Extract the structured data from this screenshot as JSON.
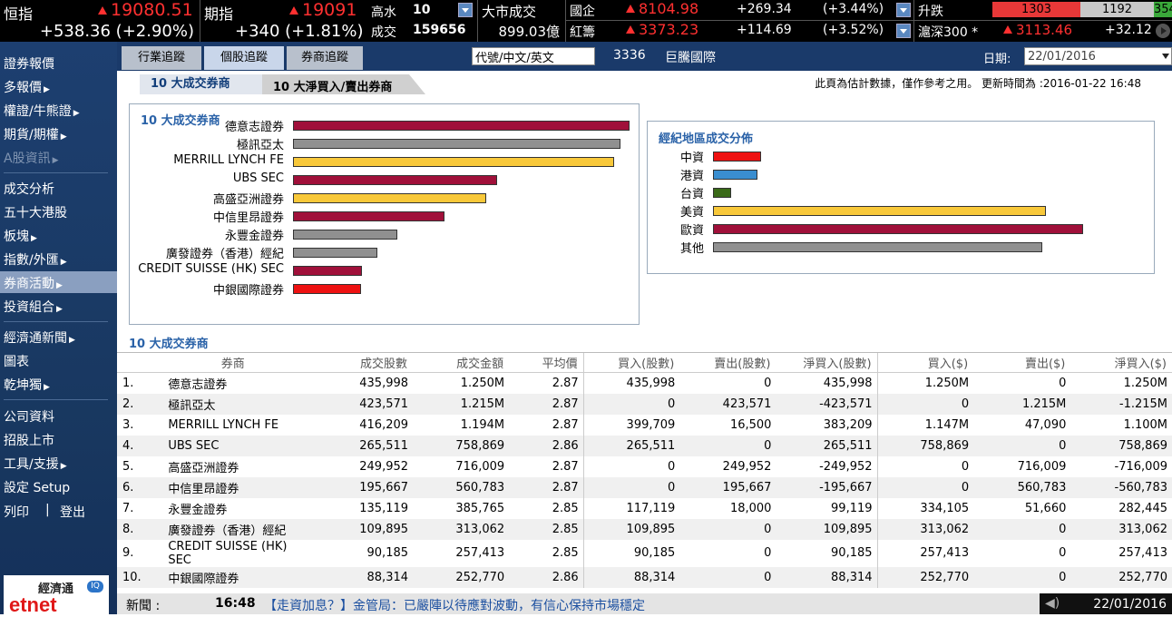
{
  "ticker": {
    "hsi": {
      "label": "恒指",
      "value": "19080.51",
      "change": "+538.36 (+2.90%)"
    },
    "futures": {
      "label": "期指",
      "value": "19091",
      "change": "+340 (+1.81%)",
      "high_label": "高水",
      "high_value": "10",
      "turnover_label": "成交",
      "turnover_value": "159656"
    },
    "market": {
      "label": "大市成交",
      "value": "899.03億"
    },
    "hscei": {
      "label": "國企",
      "value": "8104.98",
      "change": "+269.34",
      "pct": "(+3.44%)"
    },
    "redchip": {
      "label": "紅籌",
      "value": "3373.23",
      "change": "+114.69",
      "pct": "(+3.52%)"
    },
    "breadth": {
      "label": "升跌",
      "up": "1303",
      "unch": "1192",
      "down": "354"
    },
    "csi300": {
      "label": "滬深300 *",
      "value": "3113.46",
      "change": "+32.12"
    }
  },
  "sidebar": {
    "items": [
      "證券報價",
      "多報價",
      "權證/牛熊證",
      "期貨/期權",
      "A股資訊",
      "成交分析",
      "五十大港股",
      "板塊",
      "指數/外匯",
      "券商活動",
      "投資組合",
      "經濟通新聞",
      "圖表",
      "乾坤獨",
      "公司資料",
      "招股上市",
      "工具/支援",
      "設定 Setup",
      "列印",
      "登出"
    ],
    "active": "券商活動"
  },
  "logo": {
    "name": "etnet",
    "chinese": "經濟通",
    "badge": "IQ"
  },
  "tabs": {
    "industry": "行業追蹤",
    "stock": "個股追蹤",
    "broker": "券商追蹤"
  },
  "search": {
    "placeholder": "代號/中文/英文",
    "value": "代號/中文/英文"
  },
  "stock": {
    "code": "3336",
    "name": "巨騰國際"
  },
  "date": {
    "label": "日期:",
    "value": "22/01/2016"
  },
  "subtabs": {
    "top10": "10 大成交券商",
    "top10_net": "10 大淨買入/賣出券商"
  },
  "notice": "此頁為估計數據，僅作參考之用。 更新時間為 :2016-01-22 16:48",
  "chart_left": {
    "title": "10 大成交券商",
    "colors": {
      "red": "#a0103a",
      "gray": "#909090",
      "yellow": "#f8c83a",
      "bright": "#ee1111"
    }
  },
  "chart_right": {
    "title": "經紀地區成交分佈"
  },
  "chart_data": [
    {
      "type": "bar",
      "title": "10 大成交券商",
      "categories": [
        "德意志證券",
        "極訊亞太",
        "MERRILL LYNCH FE",
        "UBS SEC",
        "高盛亞洲證券",
        "中信里昂證券",
        "永豐金證券",
        "廣發證券（香港）經紀",
        "CREDIT SUISSE (HK) SEC",
        "中銀國際證券"
      ],
      "values": [
        1.25,
        1.215,
        1.194,
        0.759,
        0.716,
        0.561,
        0.386,
        0.313,
        0.257,
        0.253
      ]
    },
    {
      "type": "bar",
      "title": "經紀地區成交分佈",
      "categories": [
        "中資",
        "港資",
        "台資",
        "美資",
        "歐資",
        "其他"
      ],
      "values": [
        0.13,
        0.12,
        0.05,
        0.9,
        1.0,
        0.89
      ]
    }
  ],
  "table": {
    "title": "10 大成交券商",
    "headers": [
      "券商",
      "成交股數",
      "成交金額",
      "平均價",
      "買入(股數)",
      "賣出(股數)",
      "淨買入(股數)",
      "買入($)",
      "賣出($)",
      "淨買入($)"
    ],
    "rows": [
      [
        "1.",
        "德意志證券",
        "435,998",
        "1.250M",
        "2.87",
        "435,998",
        "0",
        "435,998",
        "1.250M",
        "0",
        "1.250M"
      ],
      [
        "2.",
        "極訊亞太",
        "423,571",
        "1.215M",
        "2.87",
        "0",
        "423,571",
        "-423,571",
        "0",
        "1.215M",
        "-1.215M"
      ],
      [
        "3.",
        "MERRILL LYNCH FE",
        "416,209",
        "1.194M",
        "2.87",
        "399,709",
        "16,500",
        "383,209",
        "1.147M",
        "47,090",
        "1.100M"
      ],
      [
        "4.",
        "UBS SEC",
        "265,511",
        "758,869",
        "2.86",
        "265,511",
        "0",
        "265,511",
        "758,869",
        "0",
        "758,869"
      ],
      [
        "5.",
        "高盛亞洲證券",
        "249,952",
        "716,009",
        "2.87",
        "0",
        "249,952",
        "-249,952",
        "0",
        "716,009",
        "-716,009"
      ],
      [
        "6.",
        "中信里昂證券",
        "195,667",
        "560,783",
        "2.87",
        "0",
        "195,667",
        "-195,667",
        "0",
        "560,783",
        "-560,783"
      ],
      [
        "7.",
        "永豐金證券",
        "135,119",
        "385,765",
        "2.85",
        "117,119",
        "18,000",
        "99,119",
        "334,105",
        "51,660",
        "282,445"
      ],
      [
        "8.",
        "廣發證券（香港）經紀",
        "109,895",
        "313,062",
        "2.85",
        "109,895",
        "0",
        "109,895",
        "313,062",
        "0",
        "313,062"
      ],
      [
        "9.",
        "CREDIT SUISSE (HK) SEC",
        "90,185",
        "257,413",
        "2.85",
        "90,185",
        "0",
        "90,185",
        "257,413",
        "0",
        "257,413"
      ],
      [
        "10.",
        "中銀國際證券",
        "88,314",
        "252,770",
        "2.86",
        "88,314",
        "0",
        "88,314",
        "252,770",
        "0",
        "252,770"
      ]
    ]
  },
  "news": {
    "label": "新聞 :",
    "time": "16:48",
    "headline": "【走資加息？】金管局：已嚴陣以待應對波動，有信心保持市場穩定",
    "date": "22/01/2016"
  }
}
